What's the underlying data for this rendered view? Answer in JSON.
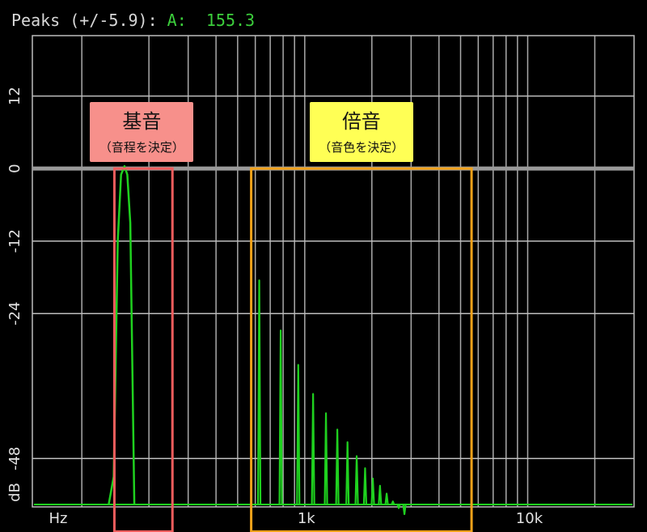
{
  "header": {
    "label": "Peaks (+/-5.9):",
    "peak_label": "A:",
    "peak_value": "155.3"
  },
  "colors": {
    "background": "#000000",
    "grid": "#bdbdbd",
    "zero_line": "#9a9a9a",
    "spectrum": "#1fd11f",
    "fundamental_box": "#f05d5d",
    "fundamental_fill": "#f7908b",
    "harmonics_box": "#f2a21a",
    "harmonics_fill": "#ffff55"
  },
  "chart_data": {
    "type": "line",
    "x_scale": "log",
    "xlim": [
      60,
      30000
    ],
    "ylim": [
      -56,
      22
    ],
    "xlabel": "Hz",
    "ylabel": "dB",
    "x_tick_labels": [
      {
        "value": 1000,
        "label": "1k"
      },
      {
        "value": 10000,
        "label": "10k"
      }
    ],
    "x_grid": [
      100,
      200,
      300,
      400,
      500,
      600,
      700,
      800,
      900,
      1000,
      2000,
      3000,
      4000,
      5000,
      6000,
      7000,
      8000,
      9000,
      10000,
      20000
    ],
    "y_ticks": [
      {
        "value": 12,
        "label": "12"
      },
      {
        "value": 0,
        "label": "0"
      },
      {
        "value": -12,
        "label": "-12"
      },
      {
        "value": -24,
        "label": "-24"
      },
      {
        "value": -48,
        "label": "-48"
      }
    ],
    "y_grid": [
      12,
      0,
      -12,
      -24,
      -48
    ],
    "zero_emphasis": 0,
    "floor_db": -59,
    "fundamental": {
      "freq": 155.3,
      "curve": [
        [
          132,
          -59
        ],
        [
          139,
          -51
        ],
        [
          145,
          -12
        ],
        [
          150,
          -1
        ],
        [
          155.3,
          0.4
        ],
        [
          160,
          -1
        ],
        [
          165,
          -9
        ],
        [
          172,
          -59
        ]
      ]
    },
    "harmonics": [
      {
        "freq": 625,
        "db": -18.5
      },
      {
        "freq": 780,
        "db": -26.8
      },
      {
        "freq": 935,
        "db": -32.5
      },
      {
        "freq": 1090,
        "db": -37.3
      },
      {
        "freq": 1245,
        "db": -40.5
      },
      {
        "freq": 1400,
        "db": -43.2
      },
      {
        "freq": 1555,
        "db": -45.3
      },
      {
        "freq": 1710,
        "db": -47.6
      },
      {
        "freq": 1865,
        "db": -49.6
      },
      {
        "freq": 2020,
        "db": -51.3
      },
      {
        "freq": 2175,
        "db": -52.5
      },
      {
        "freq": 2330,
        "db": -53.8
      },
      {
        "freq": 2485,
        "db": -55.1
      },
      {
        "freq": 2640,
        "db": -56.2
      },
      {
        "freq": 2800,
        "db": -57.2
      }
    ],
    "annotations": [
      {
        "id": "fundamental",
        "title": "基音",
        "subtitle": "（音程を決定）",
        "xrange": [
          140,
          255
        ],
        "yrange": [
          0,
          -59
        ]
      },
      {
        "id": "harmonics",
        "title": "倍音",
        "subtitle": "（音色を決定）",
        "xrange": [
          575,
          5600
        ],
        "yrange": [
          0,
          -59
        ]
      }
    ]
  }
}
